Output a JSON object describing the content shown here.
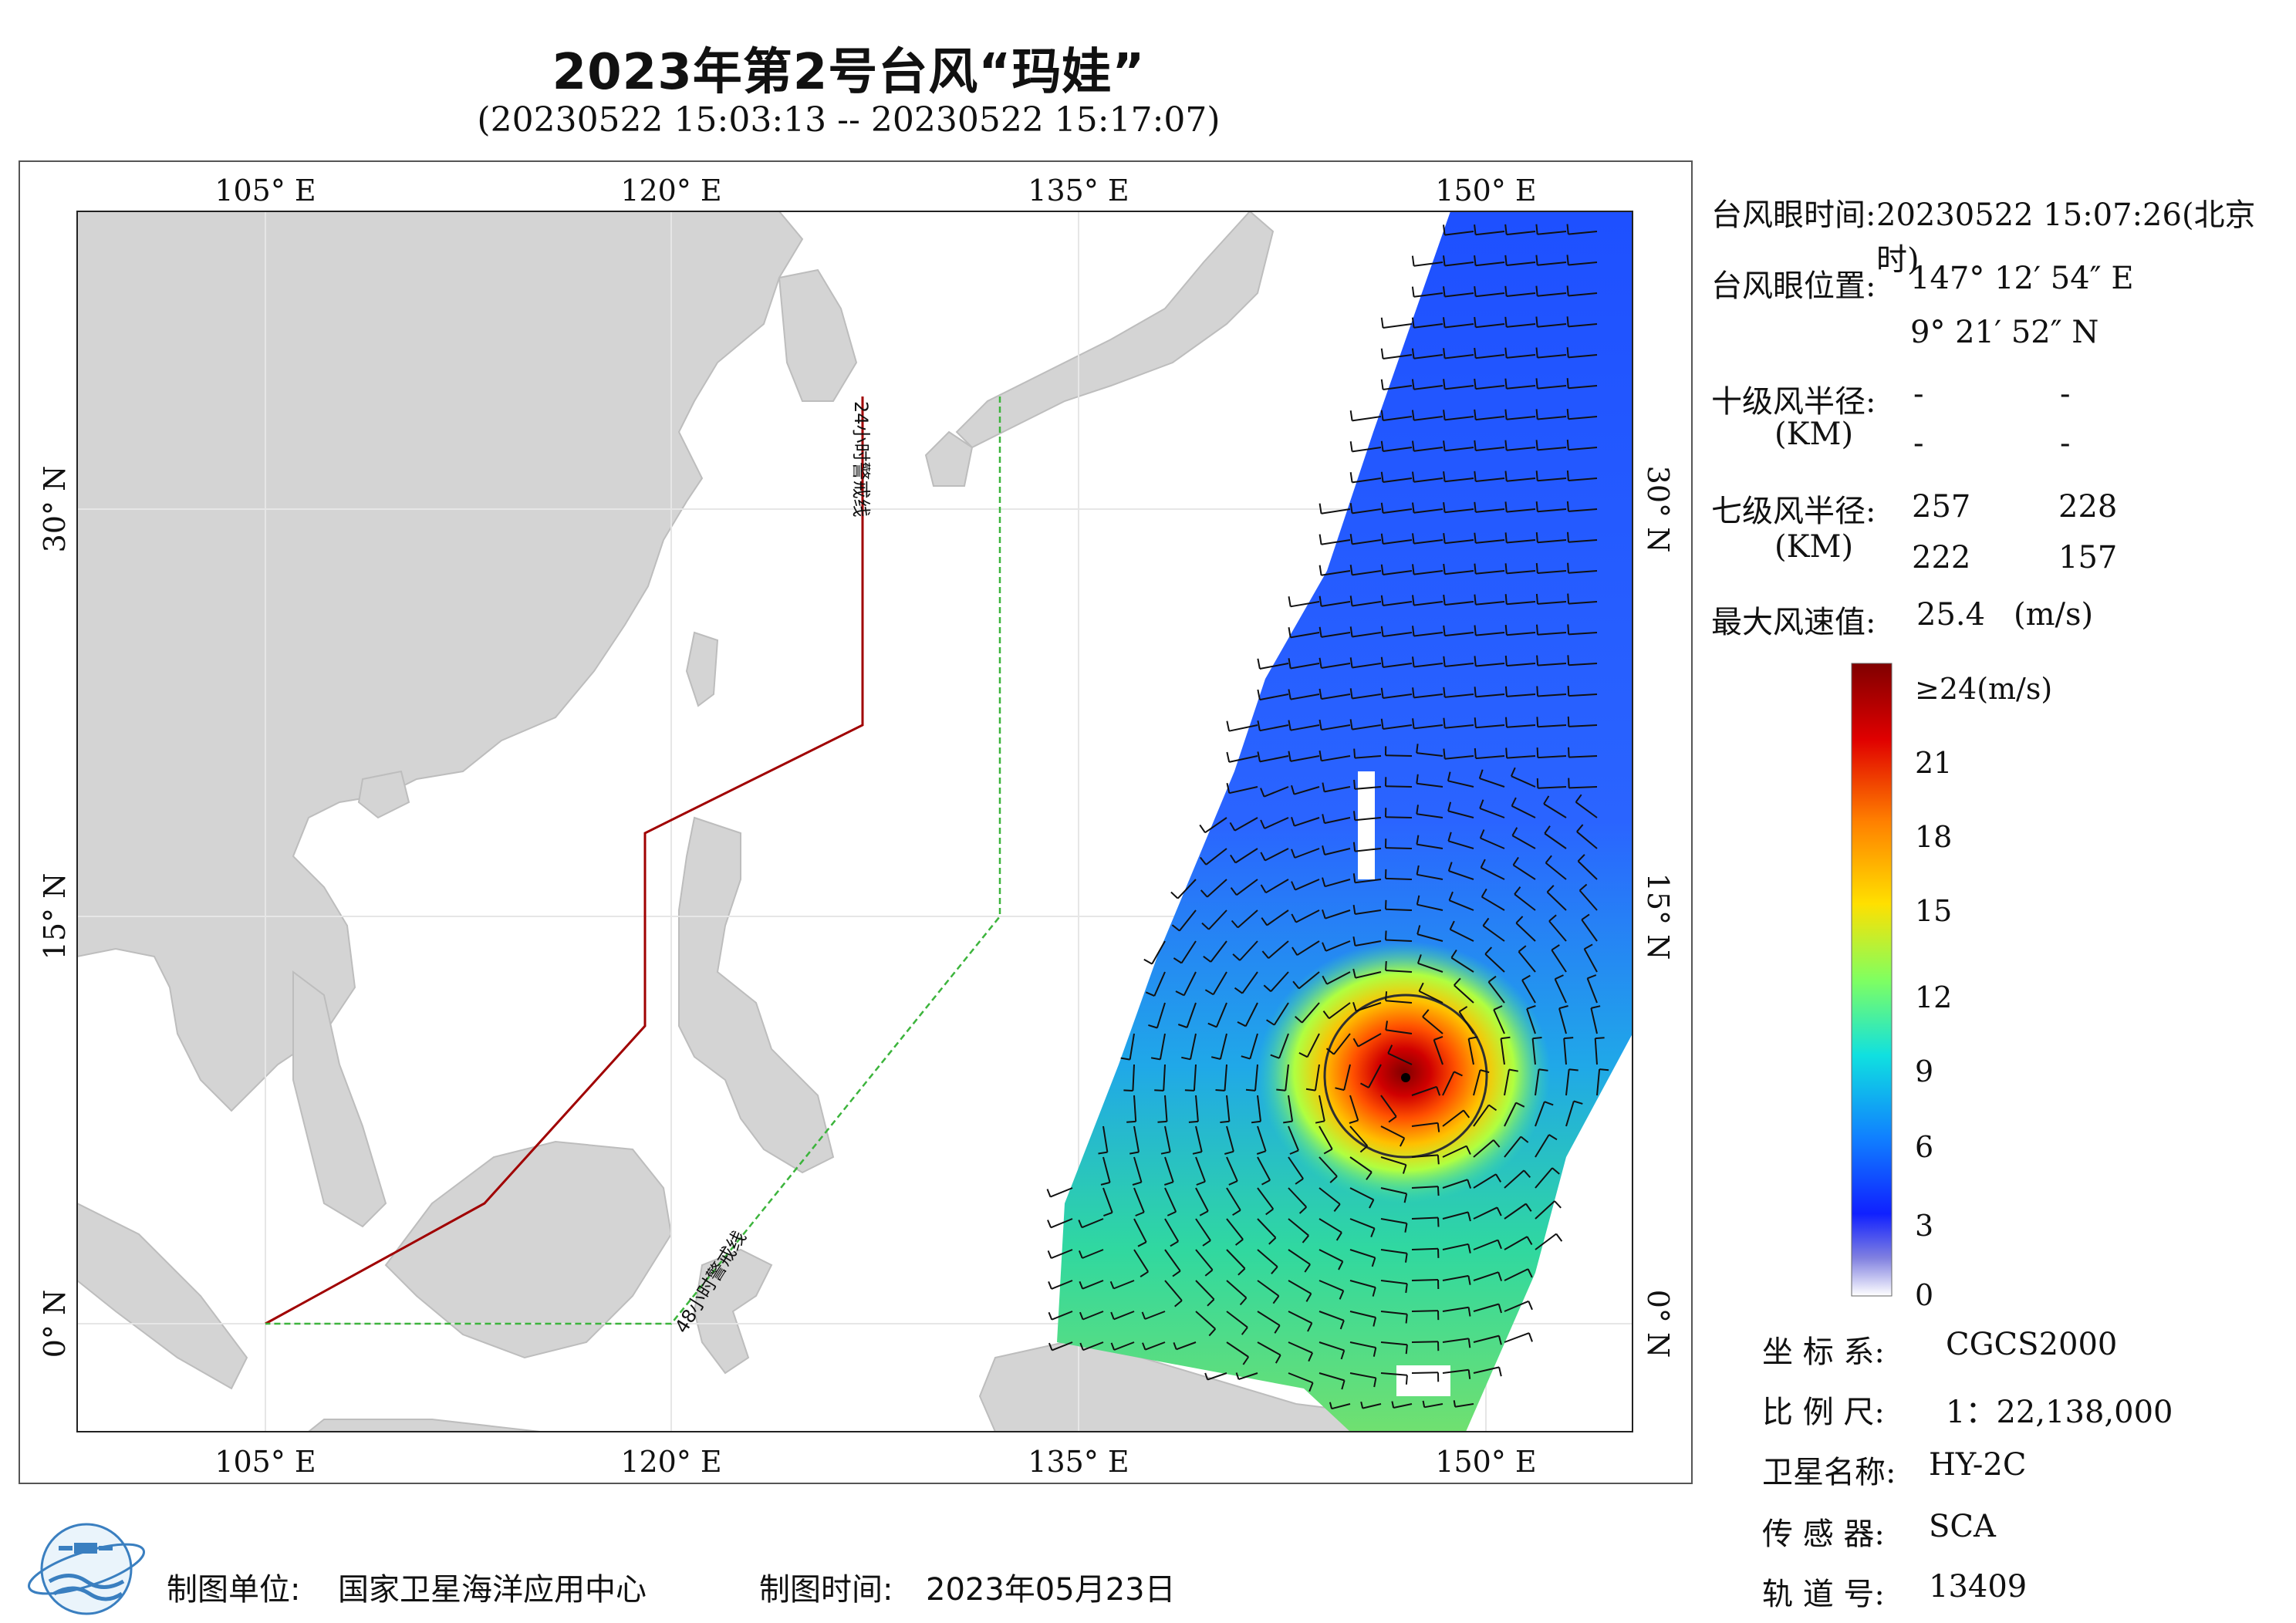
{
  "title": "2023年第2号台风“玛娃”",
  "subtitle": "(20230522 15:03:13 -- 20230522 15:17:07)",
  "axes": {
    "lon_ticks": [
      "105° E",
      "120° E",
      "135° E",
      "150° E"
    ],
    "lat_ticks": [
      "30° N",
      "15° N",
      "0° N"
    ]
  },
  "lines": {
    "warn24": "24小时警戒线",
    "warn48": "48小时警戒线"
  },
  "info": {
    "eye_time_label": "台风眼时间:",
    "eye_time": "20230522 15:07:26(北京时)",
    "eye_pos_label": "台风眼位置:",
    "eye_lon": "147° 12′ 54″ E",
    "eye_lat": "9° 21′ 52″ N",
    "r10_label": "十级风半径:",
    "r10_unit": "(KM)",
    "r10_values": [
      "-",
      "-",
      "-",
      "-"
    ],
    "r7_label": "七级风半径:",
    "r7_unit": "(KM)",
    "r7_values": [
      "257",
      "228",
      "222",
      "157"
    ],
    "max_wind_label": "最大风速值:",
    "max_wind_value": "25.4",
    "max_wind_unit": "(m/s)"
  },
  "colorbar": {
    "labels": [
      "≥24(m/s)",
      "21",
      "18",
      "15",
      "12",
      "9",
      "6",
      "3",
      "0"
    ],
    "stops": [
      "#800000",
      "#ff0000",
      "#ff8000",
      "#ffff00",
      "#80ff80",
      "#00ffff",
      "#0080ff",
      "#0000ff",
      "#ffffff"
    ]
  },
  "meta": {
    "coord_label": "坐 标 系:",
    "coord_value": "CGCS2000",
    "scale_label": "比 例 尺:",
    "scale_value": "1：22,138,000",
    "sat_label": "卫星名称:",
    "sat_value": "HY-2C",
    "sensor_label": "传 感 器:",
    "sensor_value": "SCA",
    "orbit_label": "轨 道 号:",
    "orbit_value": "13409"
  },
  "footer": {
    "maker_label": "制图单位:",
    "maker": "国家卫星海洋应用中心",
    "date_label": "制图时间:",
    "date": "2023年05月23日"
  },
  "colors": {
    "land": "#d4d4d4",
    "warn24": "#a00000",
    "warn48": "#3cb43c"
  }
}
